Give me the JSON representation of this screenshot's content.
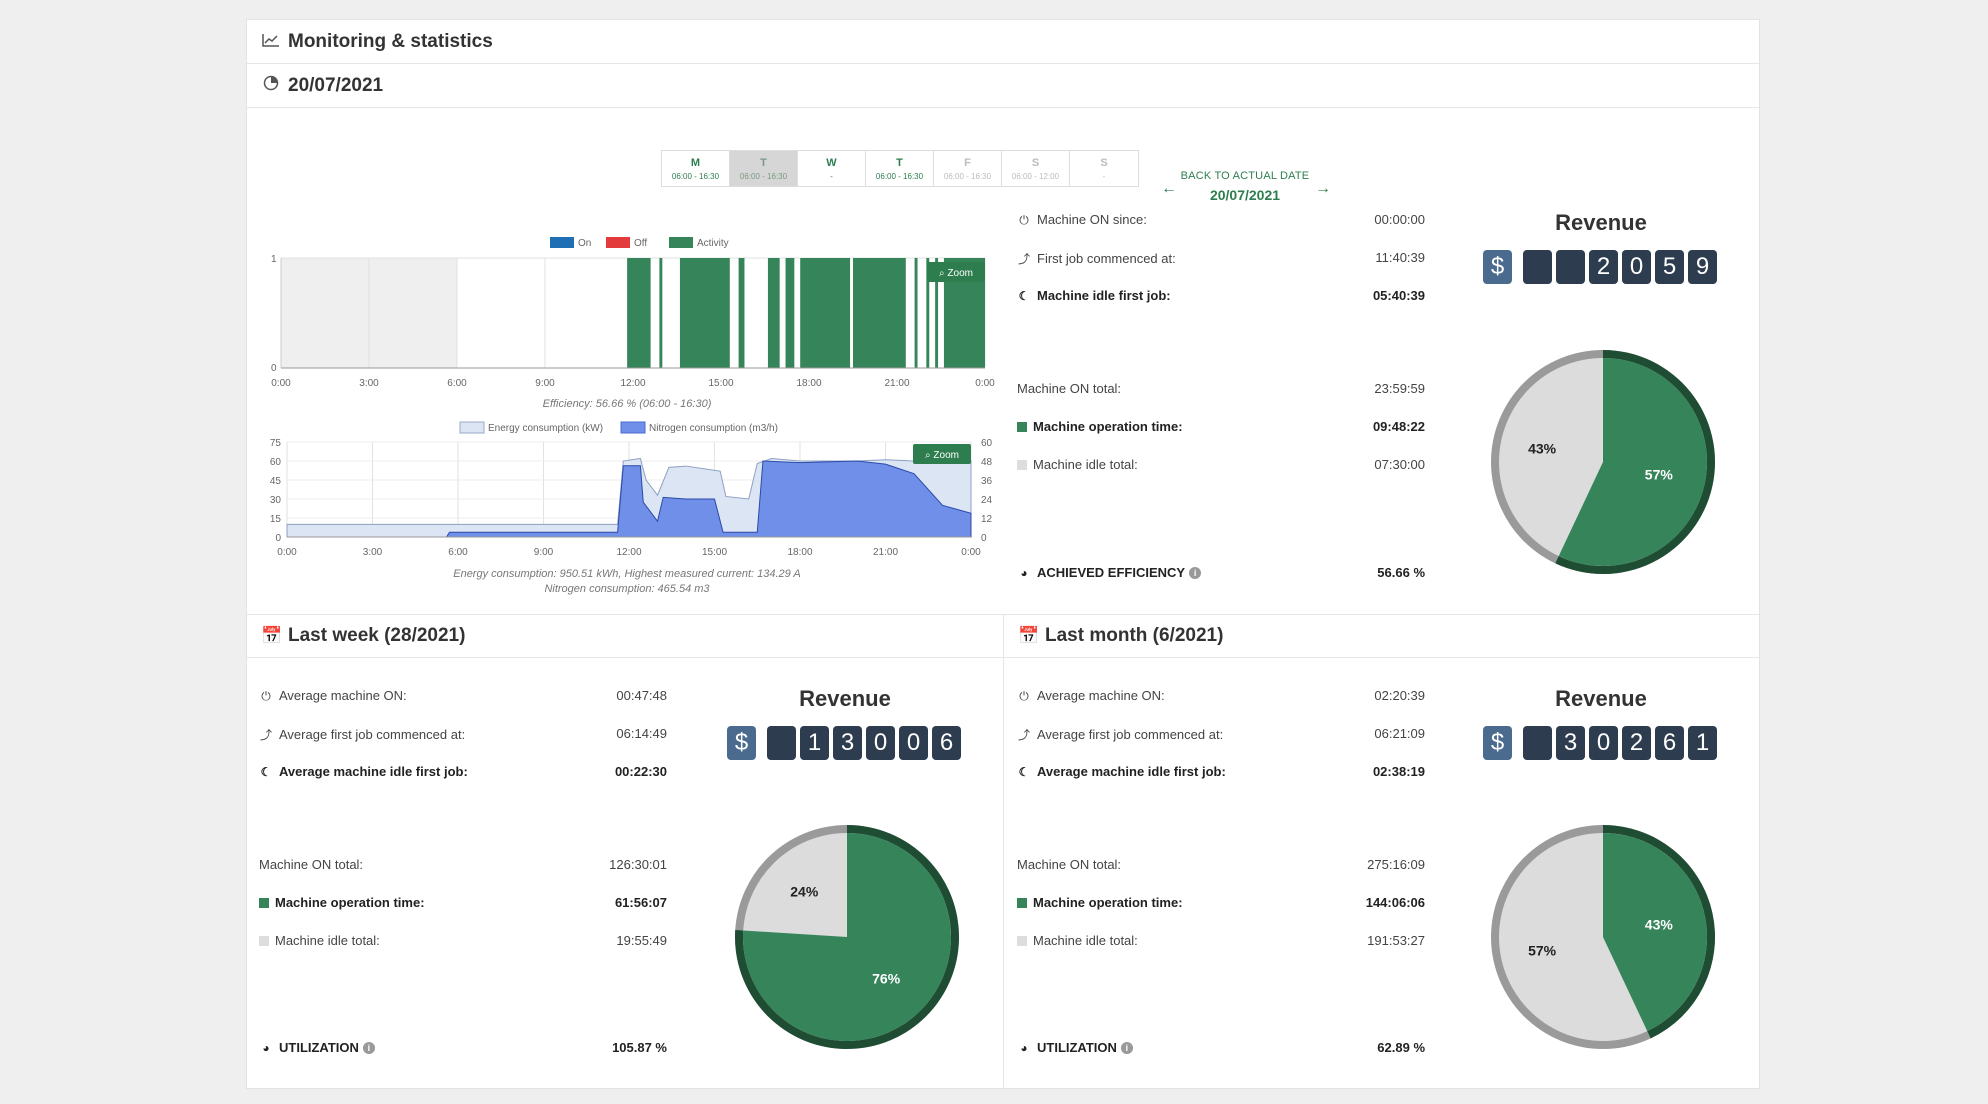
{
  "page_title": "Monitoring & statistics",
  "day_header": "20/07/2021",
  "week_days": [
    {
      "letter": "M",
      "hours": "06:00 - 16:30",
      "state": "normal"
    },
    {
      "letter": "T",
      "hours": "06:00 - 16:30",
      "state": "selected"
    },
    {
      "letter": "W",
      "hours": "-",
      "state": "normal"
    },
    {
      "letter": "T",
      "hours": "06:00 - 16:30",
      "state": "normal"
    },
    {
      "letter": "F",
      "hours": "06:00 - 16:30",
      "state": "disabled"
    },
    {
      "letter": "S",
      "hours": "06:00 - 12:00",
      "state": "disabled"
    },
    {
      "letter": "S",
      "hours": "-",
      "state": "disabled"
    }
  ],
  "back_to_date": {
    "label": "BACK TO ACTUAL DATE",
    "date": "20/07/2021"
  },
  "activity_chart": {
    "legend": [
      "On",
      "Off",
      "Activity"
    ],
    "colors": {
      "on": "#1f6fb5",
      "off": "#e33b3b",
      "activity": "#36845a"
    },
    "x_ticks": [
      "0:00",
      "3:00",
      "6:00",
      "9:00",
      "12:00",
      "15:00",
      "18:00",
      "21:00",
      "0:00"
    ],
    "y_ticks": [
      "1",
      "0"
    ],
    "zoom_label": "Zoom",
    "caption": "Efficiency: 56.66 % (06:00 - 16:30)"
  },
  "energy_chart": {
    "legend": [
      "Energy consumption (kW)",
      "Nitrogen consumption (m3/h)"
    ],
    "x_ticks": [
      "0:00",
      "3:00",
      "6:00",
      "9:00",
      "12:00",
      "15:00",
      "18:00",
      "21:00",
      "0:00"
    ],
    "y_left_ticks": [
      "75",
      "60",
      "45",
      "30",
      "15",
      "0"
    ],
    "y_right_ticks": [
      "60",
      "48",
      "36",
      "24",
      "12",
      "0"
    ],
    "zoom_label": "Zoom",
    "caption_1": "Energy consumption: 950.51 kWh, Highest measured current: 134.29 A",
    "caption_2": "Nitrogen consumption: 465.54 m3"
  },
  "chart_data": [
    {
      "type": "area",
      "title": "",
      "x_ticks": [
        "0:00",
        "3:00",
        "6:00",
        "9:00",
        "12:00",
        "15:00",
        "18:00",
        "21:00",
        "0:00"
      ],
      "ylim": [
        0,
        1
      ],
      "series": [
        {
          "name": "Activity",
          "intervals_hours": [
            [
              11.8,
              12.6
            ],
            [
              12.9,
              13.0
            ],
            [
              13.6,
              15.3
            ],
            [
              15.6,
              15.8
            ],
            [
              16.6,
              17.0
            ],
            [
              17.2,
              17.5
            ],
            [
              17.7,
              19.4
            ],
            [
              19.5,
              21.3
            ],
            [
              21.6,
              21.7
            ],
            [
              22.0,
              22.1
            ],
            [
              22.3,
              22.4
            ],
            [
              22.6,
              24.0
            ]
          ]
        }
      ],
      "grey_band_hours": [
        0,
        6
      ]
    },
    {
      "type": "area",
      "title": "",
      "x_ticks": [
        "0:00",
        "3:00",
        "6:00",
        "9:00",
        "12:00",
        "15:00",
        "18:00",
        "21:00",
        "0:00"
      ],
      "ylim_left": [
        0,
        75
      ],
      "ylim_right": [
        0,
        60
      ],
      "series": [
        {
          "name": "Energy consumption (kW)",
          "points": [
            [
              0,
              10
            ],
            [
              5.5,
              10
            ],
            [
              5.8,
              10
            ],
            [
              11.6,
              10
            ],
            [
              11.8,
              60
            ],
            [
              12.4,
              62
            ],
            [
              12.6,
              45
            ],
            [
              13.0,
              33
            ],
            [
              13.4,
              55
            ],
            [
              14.0,
              56
            ],
            [
              14.6,
              54
            ],
            [
              15.2,
              52
            ],
            [
              15.4,
              32
            ],
            [
              16.2,
              30
            ],
            [
              16.5,
              58
            ],
            [
              17.0,
              62
            ],
            [
              18.0,
              60
            ],
            [
              20.0,
              60
            ],
            [
              21.0,
              61
            ],
            [
              22.0,
              60
            ],
            [
              23.0,
              62
            ],
            [
              24,
              60
            ]
          ]
        },
        {
          "name": "Nitrogen consumption (m3/h)",
          "points": [
            [
              0,
              0
            ],
            [
              5.6,
              0
            ],
            [
              5.7,
              3
            ],
            [
              11.6,
              3
            ],
            [
              11.8,
              45
            ],
            [
              12.4,
              45
            ],
            [
              12.5,
              22
            ],
            [
              13.0,
              10
            ],
            [
              13.2,
              25
            ],
            [
              14.0,
              24
            ],
            [
              15.0,
              24
            ],
            [
              15.3,
              3
            ],
            [
              16.5,
              3
            ],
            [
              16.7,
              48
            ],
            [
              18.0,
              47
            ],
            [
              20.0,
              48
            ],
            [
              21.0,
              46
            ],
            [
              22.0,
              40
            ],
            [
              23.0,
              20
            ],
            [
              24,
              15
            ]
          ]
        }
      ]
    },
    {
      "type": "pie",
      "title": "",
      "values": [
        57,
        43
      ],
      "labels": [
        "57%",
        "43%"
      ],
      "colors": [
        "#36845a",
        "#dcdcdc"
      ]
    },
    {
      "type": "pie",
      "title": "",
      "values": [
        76,
        24
      ],
      "labels": [
        "76%",
        "24%"
      ],
      "colors": [
        "#36845a",
        "#dcdcdc"
      ]
    },
    {
      "type": "pie",
      "title": "",
      "values": [
        43,
        57
      ],
      "labels": [
        "43%",
        "57%"
      ],
      "colors": [
        "#36845a",
        "#dcdcdc"
      ]
    }
  ],
  "today_stats": {
    "machine_on_since": {
      "label": "Machine ON since:",
      "value": "00:00:00"
    },
    "first_job": {
      "label": "First job commenced at:",
      "value": "11:40:39"
    },
    "idle_first_job": {
      "label": "Machine idle first job:",
      "value": "05:40:39"
    },
    "on_total": {
      "label": "Machine ON total:",
      "value": "23:59:59"
    },
    "operation_time": {
      "label": "Machine operation time:",
      "value": "09:48:22"
    },
    "idle_total": {
      "label": "Machine idle total:",
      "value": "07:30:00"
    },
    "efficiency": {
      "label": "ACHIEVED EFFICIENCY",
      "value": "56.66 %"
    },
    "revenue_title": "Revenue",
    "currency": "$",
    "revenue_digits": [
      "",
      "",
      "2",
      "0",
      "5",
      "9"
    ]
  },
  "last_week": {
    "header": "Last week (28/2021)",
    "avg_on": {
      "label": "Average machine ON:",
      "value": "00:47:48"
    },
    "avg_first_job": {
      "label": "Average first job commenced at:",
      "value": "06:14:49"
    },
    "avg_idle_first_job": {
      "label": "Average machine idle first job:",
      "value": "00:22:30"
    },
    "on_total": {
      "label": "Machine ON total:",
      "value": "126:30:01"
    },
    "operation_time": {
      "label": "Machine operation time:",
      "value": "61:56:07"
    },
    "idle_total": {
      "label": "Machine idle total:",
      "value": "19:55:49"
    },
    "utilization": {
      "label": "UTILIZATION",
      "value": "105.87 %"
    },
    "revenue_title": "Revenue",
    "currency": "$",
    "revenue_digits": [
      "",
      "1",
      "3",
      "0",
      "0",
      "6"
    ]
  },
  "last_month": {
    "header": "Last month (6/2021)",
    "avg_on": {
      "label": "Average machine ON:",
      "value": "02:20:39"
    },
    "avg_first_job": {
      "label": "Average first job commenced at:",
      "value": "06:21:09"
    },
    "avg_idle_first_job": {
      "label": "Average machine idle first job:",
      "value": "02:38:19"
    },
    "on_total": {
      "label": "Machine ON total:",
      "value": "275:16:09"
    },
    "operation_time": {
      "label": "Machine operation time:",
      "value": "144:06:06"
    },
    "idle_total": {
      "label": "Machine idle total:",
      "value": "191:53:27"
    },
    "utilization": {
      "label": "UTILIZATION",
      "value": "62.89 %"
    },
    "revenue_title": "Revenue",
    "currency": "$",
    "revenue_digits": [
      "",
      "3",
      "0",
      "2",
      "6",
      "1"
    ]
  }
}
